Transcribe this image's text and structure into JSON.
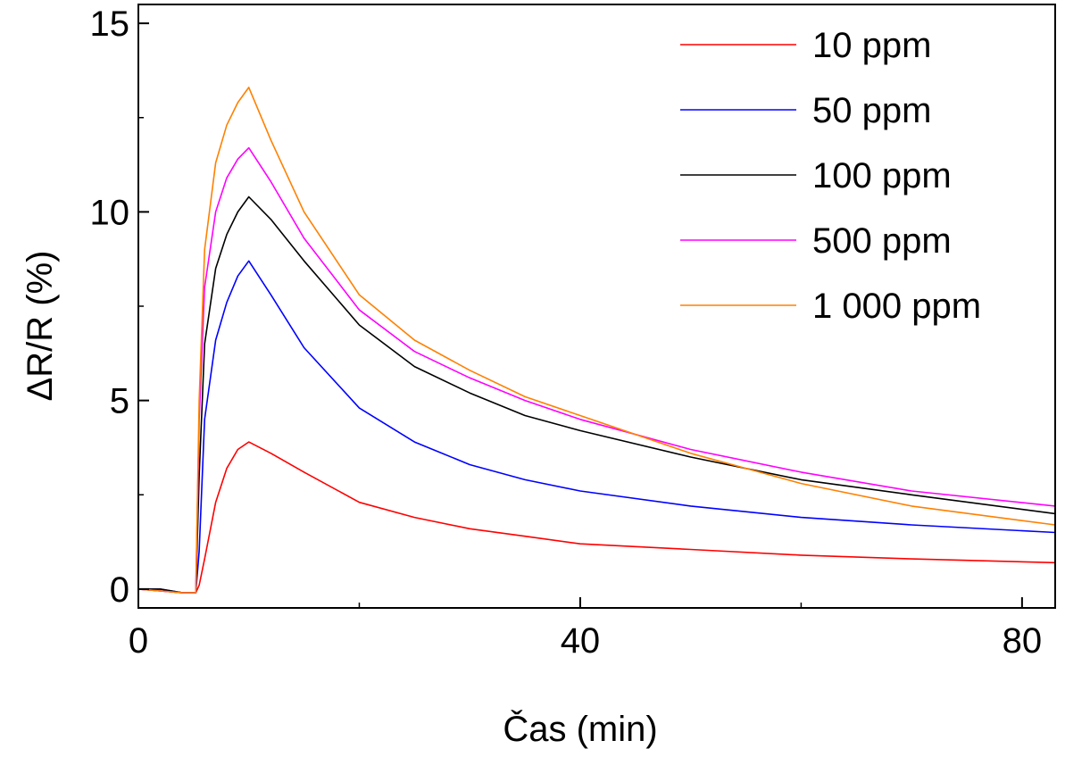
{
  "chart_data": {
    "type": "line",
    "title": "",
    "xlabel": "Čas (min)",
    "ylabel": "ΔR/R (%)",
    "xlim": [
      0,
      83
    ],
    "ylim": [
      -0.5,
      15.5
    ],
    "xticks": [
      0,
      40,
      80
    ],
    "xtick_labels": [
      "0",
      "40",
      "80"
    ],
    "x_minor_ticks": [
      20,
      60
    ],
    "yticks": [
      0,
      5,
      10,
      15
    ],
    "ytick_labels": [
      "0",
      "5",
      "10",
      "15"
    ],
    "y_minor_ticks": [
      2.5,
      7.5,
      12.5
    ],
    "grid": false,
    "legend_position": "top-right",
    "x": [
      0,
      2,
      4,
      5.2,
      5.5,
      6,
      7,
      8,
      9,
      10,
      12,
      15,
      20,
      25,
      30,
      35,
      40,
      50,
      60,
      70,
      83
    ],
    "series": [
      {
        "name": "10 ppm",
        "color": "#ff0000",
        "values": [
          0,
          -0.05,
          -0.1,
          -0.1,
          0.1,
          0.8,
          2.3,
          3.2,
          3.7,
          3.9,
          3.6,
          3.1,
          2.3,
          1.9,
          1.6,
          1.4,
          1.2,
          1.05,
          0.9,
          0.8,
          0.7
        ]
      },
      {
        "name": "50 ppm",
        "color": "#0000ff",
        "values": [
          0,
          0.0,
          -0.1,
          -0.1,
          1.0,
          4.5,
          6.6,
          7.6,
          8.3,
          8.7,
          7.8,
          6.4,
          4.8,
          3.9,
          3.3,
          2.9,
          2.6,
          2.2,
          1.9,
          1.7,
          1.5
        ]
      },
      {
        "name": "100 ppm",
        "color": "#000000",
        "values": [
          0,
          0.0,
          -0.1,
          -0.1,
          3.0,
          6.5,
          8.5,
          9.4,
          10.0,
          10.4,
          9.8,
          8.7,
          7.0,
          5.9,
          5.2,
          4.6,
          4.2,
          3.5,
          2.9,
          2.5,
          2.0
        ]
      },
      {
        "name": "500 ppm",
        "color": "#ff00ff",
        "values": [
          0,
          -0.05,
          -0.1,
          -0.1,
          4.5,
          8.0,
          10.0,
          10.9,
          11.4,
          11.7,
          10.8,
          9.3,
          7.4,
          6.3,
          5.6,
          5.0,
          4.5,
          3.7,
          3.1,
          2.6,
          2.2
        ]
      },
      {
        "name": "1 000 ppm",
        "color": "#ff8000",
        "values": [
          0,
          -0.05,
          -0.1,
          -0.1,
          5.0,
          9.0,
          11.3,
          12.3,
          12.9,
          13.3,
          11.9,
          10.0,
          7.8,
          6.6,
          5.8,
          5.1,
          4.6,
          3.6,
          2.8,
          2.2,
          1.7
        ]
      }
    ]
  }
}
